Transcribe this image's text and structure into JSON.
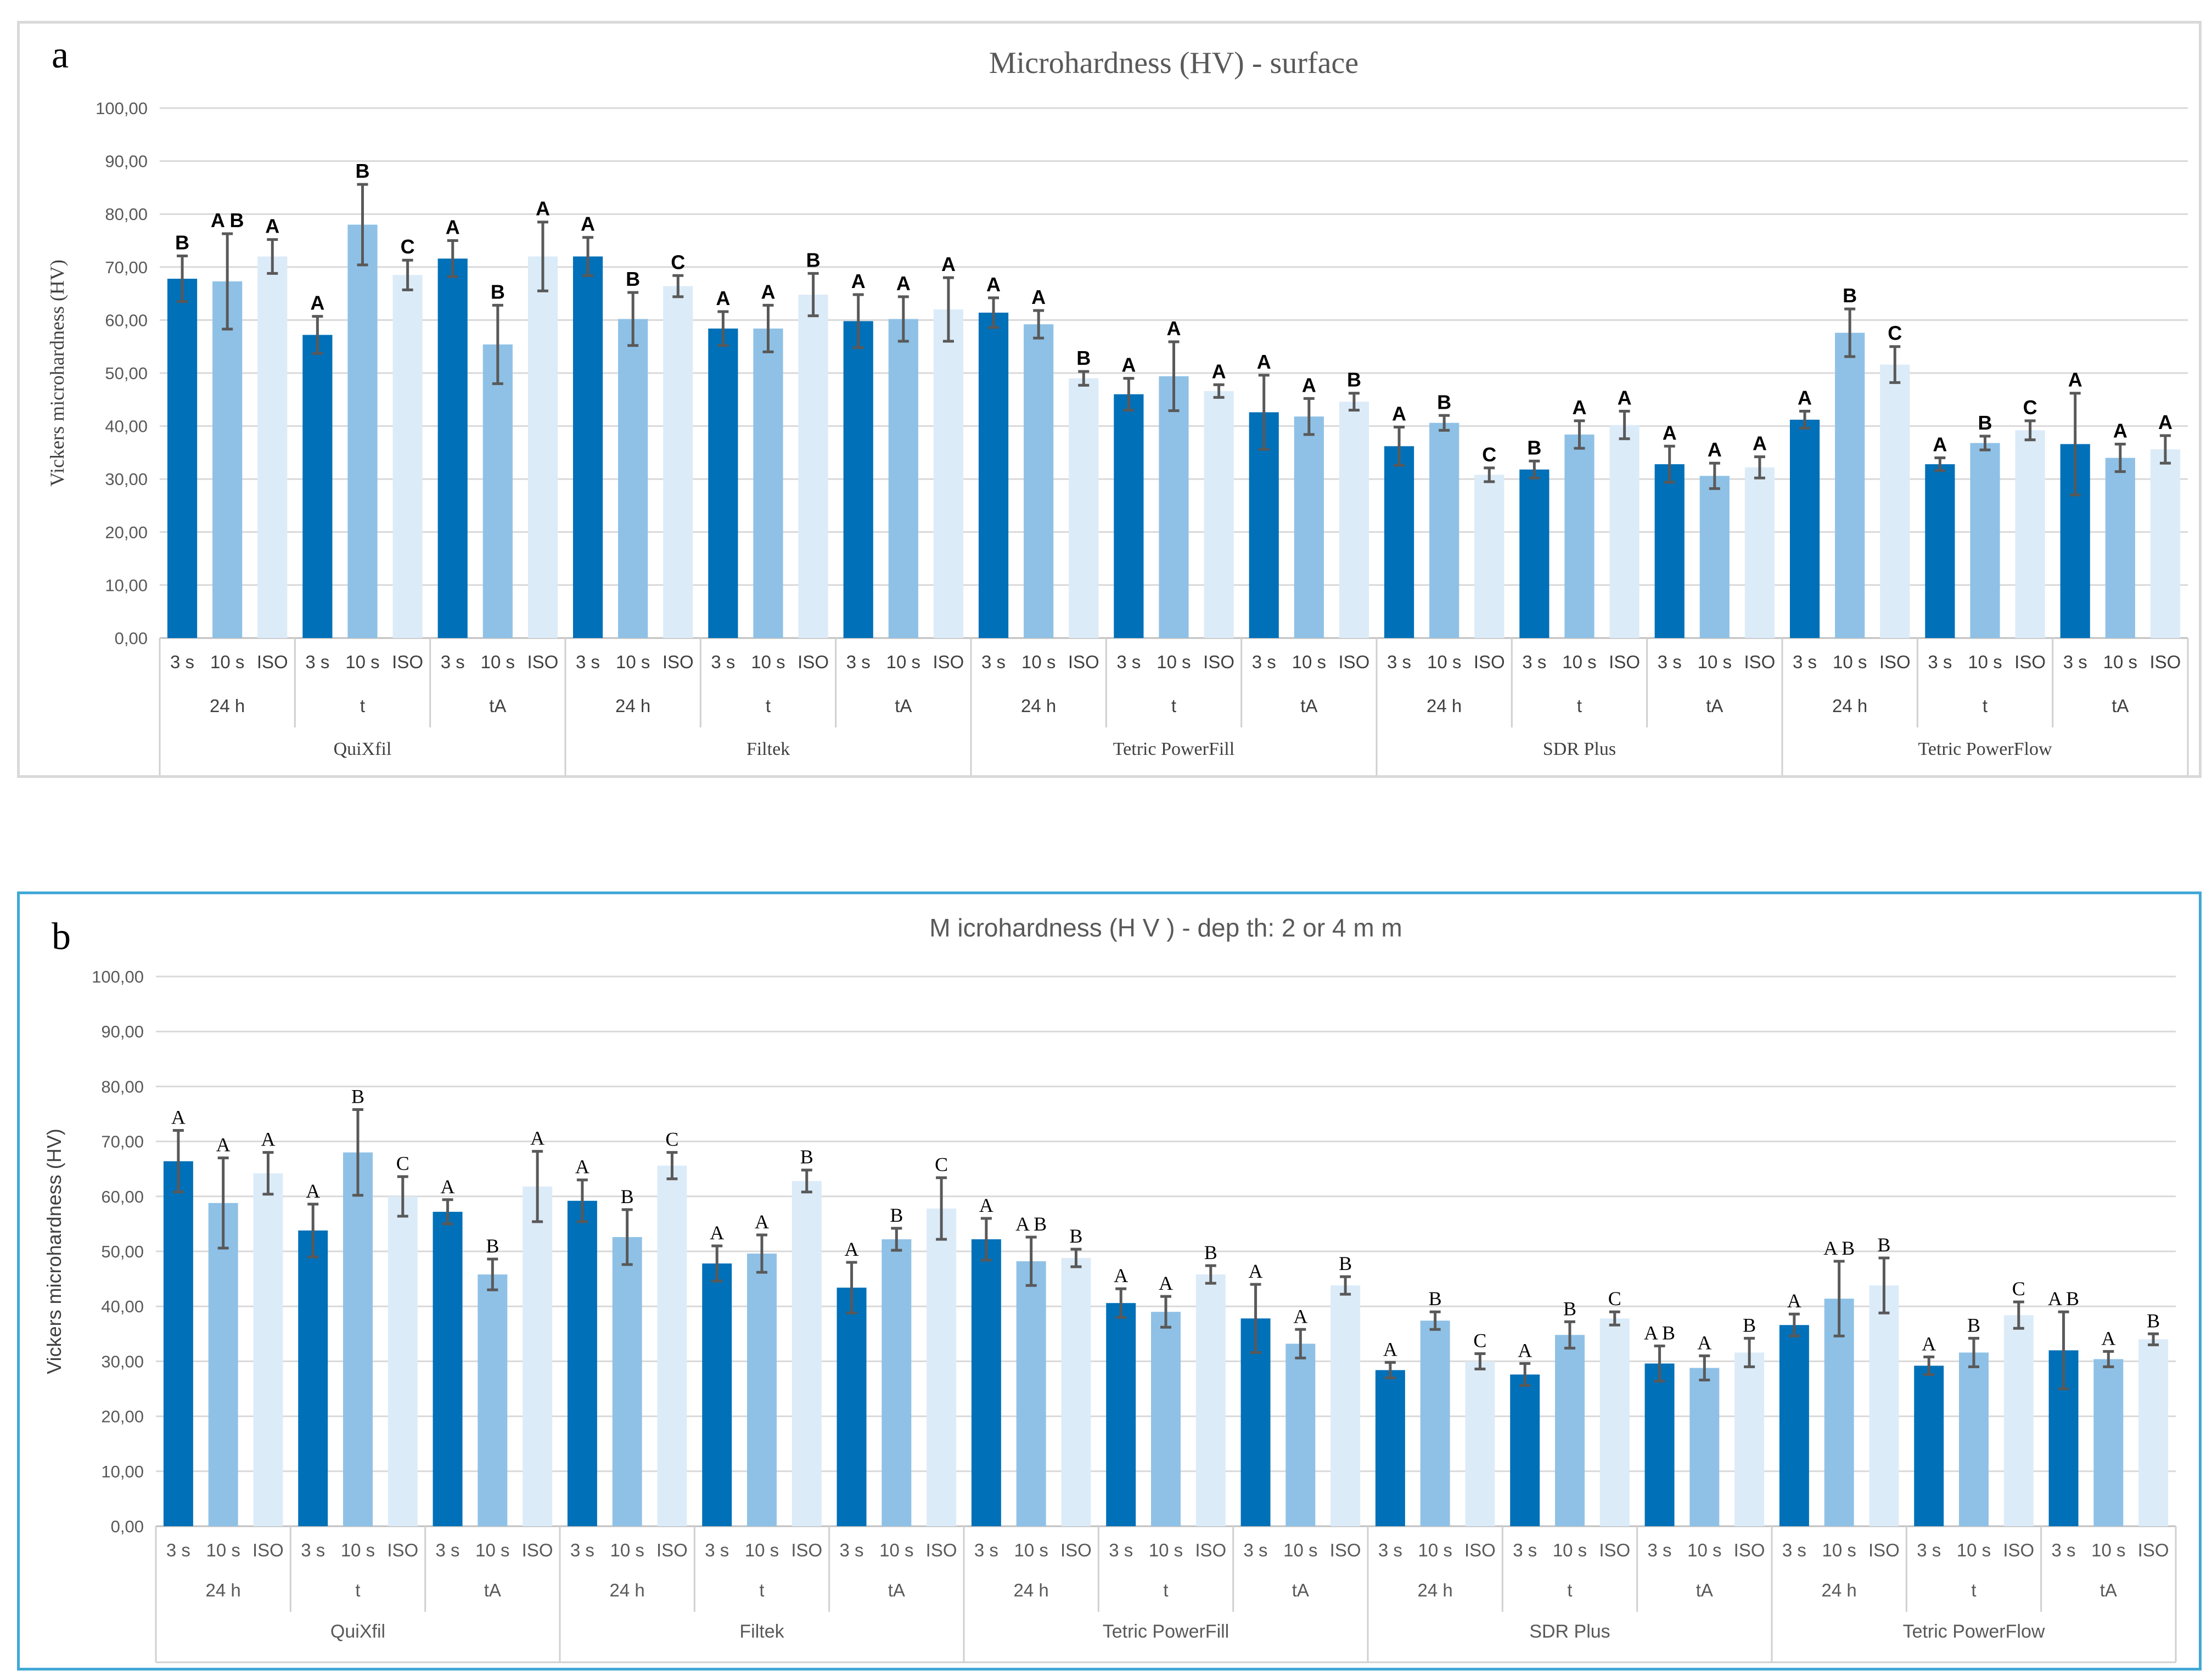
{
  "chart_data": [
    {
      "panel_label": "a",
      "type": "bar",
      "title": "Microhardness (HV) - surface",
      "ylabel": "Vickers microhardness (HV)",
      "ylim": [
        0,
        100
      ],
      "ytick_labels": [
        "0,00",
        "10,00",
        "20,00",
        "30,00",
        "40,00",
        "50,00",
        "60,00",
        "70,00",
        "80,00",
        "90,00",
        "100,00"
      ],
      "grid": true,
      "materials": [
        "QuiXfil",
        "Filtek",
        "Tetric PowerFill",
        "SDR Plus",
        "Tetric PowerFlow"
      ],
      "conditions": [
        "24 h",
        "t",
        "tA"
      ],
      "series": [
        {
          "name": "3 s",
          "color": "#0070b8"
        },
        {
          "name": "10 s",
          "color": "#8fc1e6"
        },
        {
          "name": "ISO",
          "color": "#dcebf8"
        }
      ],
      "values": [
        67.8,
        67.3,
        72.0,
        57.2,
        78.0,
        68.5,
        71.6,
        55.4,
        72.0,
        72.0,
        60.2,
        66.4,
        58.4,
        58.4,
        64.8,
        59.8,
        60.2,
        62.0,
        61.4,
        59.2,
        49.0,
        46.0,
        49.4,
        46.6,
        42.6,
        41.8,
        44.6,
        36.2,
        40.6,
        30.8,
        31.8,
        38.4,
        40.2,
        32.8,
        30.6,
        32.2,
        41.2,
        57.6,
        51.6,
        32.8,
        36.8,
        39.2,
        36.6,
        34.0,
        35.6
      ],
      "errors": [
        4.3,
        9.0,
        3.2,
        3.5,
        7.6,
        2.8,
        3.4,
        7.4,
        6.5,
        3.6,
        5.0,
        2.0,
        3.2,
        4.4,
        4.0,
        5.0,
        4.2,
        6.0,
        2.8,
        2.6,
        1.3,
        3.0,
        6.5,
        1.2,
        7.0,
        3.4,
        1.6,
        3.6,
        1.4,
        1.3,
        1.6,
        2.6,
        2.6,
        3.4,
        2.4,
        2.0,
        1.6,
        4.5,
        3.4,
        1.2,
        1.3,
        1.8,
        9.6,
        2.6,
        2.6
      ],
      "letters": [
        "B",
        "A B",
        "A",
        "A",
        "B",
        "C",
        "A",
        "B",
        "A",
        "A",
        "B",
        "C",
        "A",
        "A",
        "B",
        "A",
        "A",
        "A",
        "A",
        "A",
        "B",
        "A",
        "A",
        "A",
        "A",
        "A",
        "B",
        "A",
        "B",
        "C",
        "B",
        "A",
        "A",
        "A",
        "A",
        "A",
        "A",
        "B",
        "C",
        "A",
        "B",
        "C",
        "A",
        "A",
        "A"
      ]
    },
    {
      "panel_label": "b",
      "type": "bar",
      "title": "M icrohardness (H V ) - dep th: 2 or 4 m m",
      "ylabel": "Vickers microhardness (HV)",
      "ylim": [
        0,
        100
      ],
      "ytick_labels": [
        "0,00",
        "10,00",
        "20,00",
        "30,00",
        "40,00",
        "50,00",
        "60,00",
        "70,00",
        "80,00",
        "90,00",
        "100,00"
      ],
      "grid": true,
      "materials": [
        "QuiXfil",
        "Filtek",
        "Tetric PowerFill",
        "SDR Plus",
        "Tetric PowerFlow"
      ],
      "conditions": [
        "24 h",
        "t",
        "tA"
      ],
      "series": [
        {
          "name": "3 s",
          "color": "#0070b8"
        },
        {
          "name": "10 s",
          "color": "#8fc1e6"
        },
        {
          "name": "ISO",
          "color": "#dcebf8"
        }
      ],
      "values": [
        66.4,
        58.8,
        64.2,
        53.8,
        68.0,
        60.0,
        57.2,
        45.8,
        61.8,
        59.2,
        52.6,
        65.6,
        47.8,
        49.6,
        62.8,
        43.4,
        52.2,
        57.8,
        52.2,
        48.2,
        48.8,
        40.6,
        39.0,
        45.8,
        37.8,
        33.2,
        43.8,
        28.4,
        37.4,
        30.0,
        27.6,
        34.8,
        37.8,
        29.6,
        28.8,
        31.6,
        36.6,
        41.4,
        43.8,
        29.2,
        31.6,
        38.4,
        32.0,
        30.4,
        34.0
      ],
      "errors": [
        5.6,
        8.2,
        3.8,
        4.8,
        7.8,
        3.6,
        2.2,
        2.8,
        6.4,
        3.8,
        5.0,
        2.4,
        3.2,
        3.4,
        2.0,
        4.6,
        2.0,
        5.6,
        3.8,
        4.4,
        1.6,
        2.6,
        2.8,
        1.6,
        6.2,
        2.6,
        1.6,
        1.4,
        1.6,
        1.4,
        2.0,
        2.4,
        1.2,
        3.2,
        2.2,
        2.6,
        2.0,
        6.8,
        5.0,
        1.6,
        2.6,
        2.4,
        7.0,
        1.4,
        1.0
      ],
      "letters": [
        "A",
        "A",
        "A",
        "A",
        "B",
        "C",
        "A",
        "B",
        "A",
        "A",
        "B",
        "C",
        "A",
        "A",
        "B",
        "A",
        "B",
        "C",
        "A",
        "A B",
        "B",
        "A",
        "A",
        "B",
        "A",
        "A",
        "B",
        "A",
        "B",
        "C",
        "A",
        "B",
        "C",
        "A B",
        "A",
        "B",
        "A",
        "A B",
        "B",
        "A",
        "B",
        "C",
        "A B",
        "A",
        "B"
      ]
    }
  ]
}
